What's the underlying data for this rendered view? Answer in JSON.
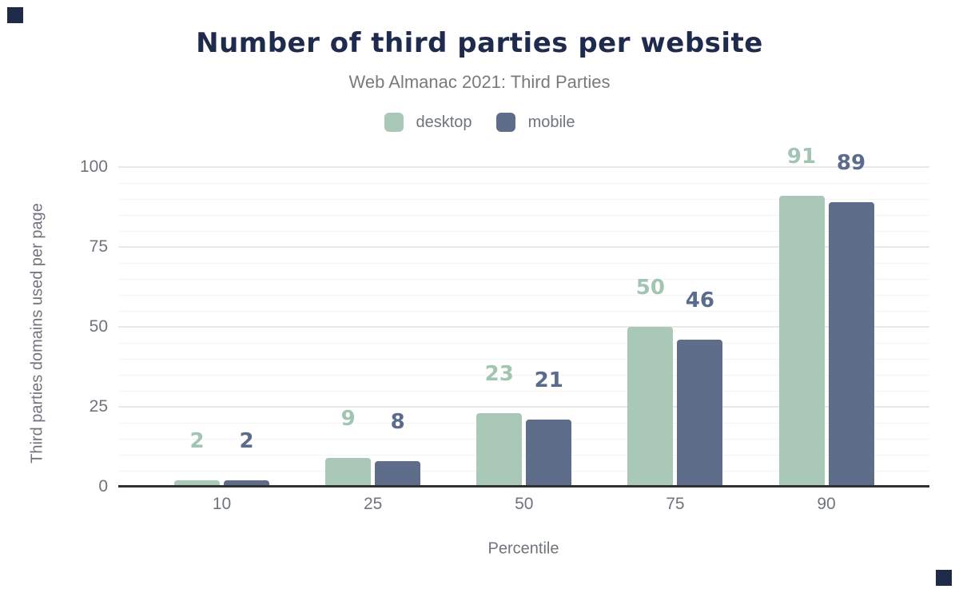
{
  "header": {
    "title": "Number of third parties per website",
    "subtitle": "Web Almanac 2021: Third Parties"
  },
  "legend": {
    "items": [
      {
        "label": "desktop",
        "color": "#a9c8b8"
      },
      {
        "label": "mobile",
        "color": "#5e6d89"
      }
    ]
  },
  "chart_data": {
    "type": "bar",
    "title": "Number of third parties per website",
    "subtitle": "Web Almanac 2021: Third Parties",
    "categories": [
      "10",
      "25",
      "50",
      "75",
      "90"
    ],
    "series": [
      {
        "name": "desktop",
        "color": "#a9c8b8",
        "label_color": "#a2c5b2",
        "values": [
          2,
          9,
          23,
          50,
          91
        ]
      },
      {
        "name": "mobile",
        "color": "#5e6d89",
        "label_color": "#5a6b8c",
        "values": [
          2,
          8,
          21,
          46,
          89
        ]
      }
    ],
    "xlabel": "Percentile",
    "ylabel": "Third parties domains used per page",
    "ylim": [
      0,
      100
    ],
    "yticks": [
      0,
      25,
      50,
      75,
      100
    ],
    "minor_grid_step": 5,
    "major_grid_step": 25,
    "grid": true,
    "legend_position": "top",
    "value_labels": true
  }
}
